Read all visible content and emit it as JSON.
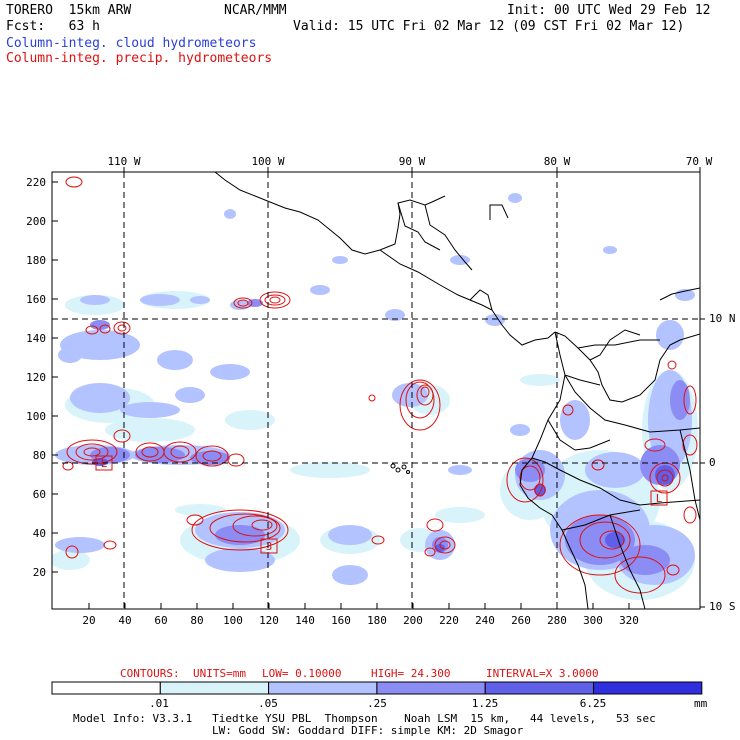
{
  "header": {
    "model_line": "TORERO  15km ARW",
    "fcst_line": "Fcst:   63 h",
    "center": "NCAR/MMM",
    "init": "Init: 00 UTC Wed 29 Feb 12",
    "valid": "Valid: 15 UTC Fri 02 Mar 12 (09 CST Fri 02 Mar 12)",
    "field1": "Column-integ. cloud hydrometeors",
    "field2": "Column-integ. precip. hydrometeors"
  },
  "top_axis": [
    "110 W",
    "100 W",
    "90 W",
    "80 W",
    "70 W"
  ],
  "right_axis": [
    "10 N",
    "0",
    "10 S"
  ],
  "left_axis": [
    "220",
    "200",
    "180",
    "160",
    "140",
    "120",
    "100",
    "80",
    "60",
    "40",
    "20"
  ],
  "bottom_axis": [
    "20",
    "40",
    "60",
    "80",
    "100",
    "120",
    "140",
    "160",
    "180",
    "200",
    "220",
    "240",
    "260",
    "280",
    "300",
    "320"
  ],
  "box_labels": [
    "L",
    "3",
    "L"
  ],
  "contours": {
    "prefix": "CONTOURS:",
    "units": "UNITS=mm",
    "low": "LOW= 0.10000",
    "high": "HIGH=  24.300",
    "interval": "INTERVAL=X  3.0000"
  },
  "colorbar": {
    "ticks": [
      ".01",
      ".05",
      ".25",
      "1.25",
      "6.25"
    ],
    "unit": "mm",
    "colors": [
      "#ffffff",
      "#d8f4fa",
      "#b3c3ff",
      "#8c8cf5",
      "#5f5fe8",
      "#2f2fe0"
    ]
  },
  "footer": {
    "line1": "Model Info: V3.3.1   Tiedtke YSU PBL  Thompson    Noah LSM  15 km,   44 levels,   53 sec",
    "line2": "LW: Godd SW: Goddard DIFF: simple KM: 2D Smagor"
  }
}
